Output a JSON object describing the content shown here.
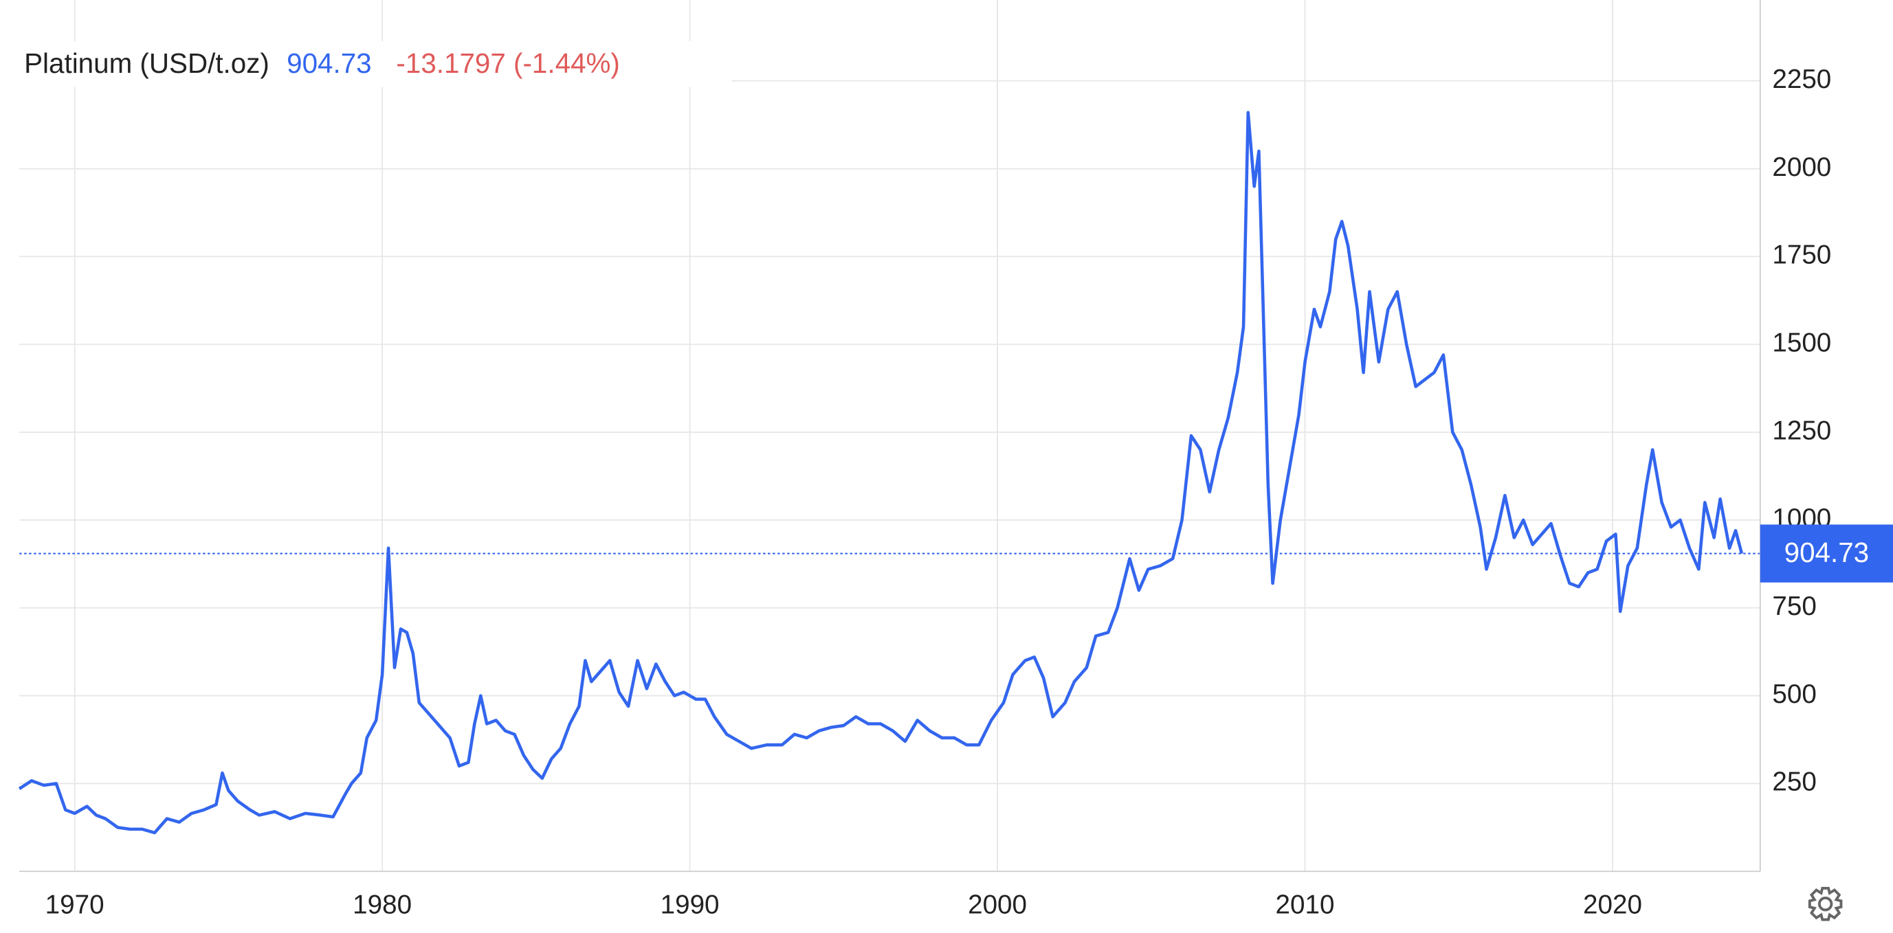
{
  "chart_data": {
    "type": "line",
    "title": "Platinum (USD/t.oz)",
    "last_value": 904.73,
    "change": "-13.1797 (-1.44%)",
    "color": "#3366ee",
    "change_color": "#e05a5a",
    "grid": true,
    "xlim": [
      1968.2,
      2024.8
    ],
    "ylim": [
      0,
      2480
    ],
    "xticks": [
      1970,
      1980,
      1990,
      2000,
      2010,
      2020
    ],
    "yticks": [
      250,
      500,
      750,
      1000,
      1250,
      1500,
      1750,
      2000,
      2250
    ],
    "x": [
      1968.2,
      1968.6,
      1969.0,
      1969.4,
      1969.7,
      1970.0,
      1970.4,
      1970.7,
      1971.0,
      1971.4,
      1971.8,
      1972.2,
      1972.6,
      1973.0,
      1973.4,
      1973.8,
      1974.2,
      1974.6,
      1974.8,
      1975.0,
      1975.3,
      1975.7,
      1976.0,
      1976.5,
      1977.0,
      1977.5,
      1978.0,
      1978.4,
      1978.8,
      1979.0,
      1979.3,
      1979.5,
      1979.8,
      1980.0,
      1980.2,
      1980.4,
      1980.6,
      1980.8,
      1981.0,
      1981.2,
      1981.5,
      1981.8,
      1982.2,
      1982.5,
      1982.8,
      1983.0,
      1983.2,
      1983.4,
      1983.7,
      1984.0,
      1984.3,
      1984.6,
      1984.9,
      1985.2,
      1985.5,
      1985.8,
      1986.1,
      1986.4,
      1986.6,
      1986.8,
      1987.1,
      1987.4,
      1987.7,
      1988.0,
      1988.3,
      1988.6,
      1988.9,
      1989.2,
      1989.5,
      1989.8,
      1990.2,
      1990.5,
      1990.8,
      1991.2,
      1991.6,
      1992.0,
      1992.5,
      1993.0,
      1993.4,
      1993.8,
      1994.2,
      1994.6,
      1995.0,
      1995.4,
      1995.8,
      1996.2,
      1996.6,
      1997.0,
      1997.4,
      1997.8,
      1998.2,
      1998.6,
      1999.0,
      1999.4,
      1999.8,
      2000.2,
      2000.5,
      2000.9,
      2001.2,
      2001.5,
      2001.8,
      2002.2,
      2002.5,
      2002.9,
      2003.2,
      2003.6,
      2003.9,
      2004.3,
      2004.6,
      2004.9,
      2005.3,
      2005.7,
      2006.0,
      2006.3,
      2006.6,
      2006.9,
      2007.2,
      2007.5,
      2007.8,
      2008.0,
      2008.15,
      2008.35,
      2008.5,
      2008.8,
      2008.95,
      2009.2,
      2009.5,
      2009.8,
      2010.0,
      2010.3,
      2010.5,
      2010.8,
      2011.0,
      2011.2,
      2011.4,
      2011.7,
      2011.9,
      2012.1,
      2012.4,
      2012.7,
      2013.0,
      2013.3,
      2013.6,
      2013.9,
      2014.2,
      2014.5,
      2014.8,
      2015.1,
      2015.4,
      2015.7,
      2015.9,
      2016.2,
      2016.5,
      2016.8,
      2017.1,
      2017.4,
      2017.7,
      2018.0,
      2018.3,
      2018.6,
      2018.9,
      2019.2,
      2019.5,
      2019.8,
      2020.1,
      2020.25,
      2020.5,
      2020.8,
      2021.1,
      2021.3,
      2021.6,
      2021.9,
      2022.2,
      2022.5,
      2022.8,
      2023.0,
      2023.3,
      2023.5,
      2023.8,
      2024.0,
      2024.2
    ],
    "values": [
      235,
      258,
      245,
      250,
      175,
      165,
      185,
      160,
      150,
      125,
      120,
      120,
      110,
      150,
      140,
      165,
      175,
      190,
      280,
      230,
      200,
      175,
      160,
      170,
      150,
      165,
      160,
      155,
      220,
      250,
      280,
      380,
      430,
      560,
      920,
      580,
      690,
      680,
      620,
      480,
      450,
      420,
      380,
      300,
      310,
      420,
      500,
      420,
      430,
      400,
      390,
      330,
      290,
      265,
      320,
      350,
      420,
      470,
      600,
      540,
      570,
      600,
      510,
      470,
      600,
      520,
      590,
      540,
      500,
      510,
      490,
      490,
      440,
      390,
      370,
      350,
      360,
      360,
      390,
      380,
      400,
      410,
      415,
      440,
      420,
      420,
      400,
      370,
      430,
      400,
      380,
      380,
      360,
      360,
      430,
      480,
      560,
      600,
      610,
      550,
      440,
      480,
      540,
      580,
      670,
      680,
      750,
      890,
      800,
      860,
      870,
      890,
      1000,
      1240,
      1200,
      1080,
      1200,
      1290,
      1420,
      1550,
      2160,
      1950,
      2050,
      1100,
      820,
      1000,
      1150,
      1300,
      1450,
      1600,
      1550,
      1650,
      1800,
      1850,
      1780,
      1600,
      1420,
      1650,
      1450,
      1600,
      1650,
      1500,
      1380,
      1400,
      1420,
      1470,
      1250,
      1200,
      1100,
      980,
      860,
      950,
      1070,
      950,
      1000,
      930,
      960,
      990,
      900,
      820,
      810,
      850,
      860,
      940,
      960,
      740,
      870,
      920,
      1100,
      1200,
      1050,
      980,
      1000,
      920,
      860,
      1050,
      950,
      1060,
      920,
      970,
      904.73
    ]
  }
}
